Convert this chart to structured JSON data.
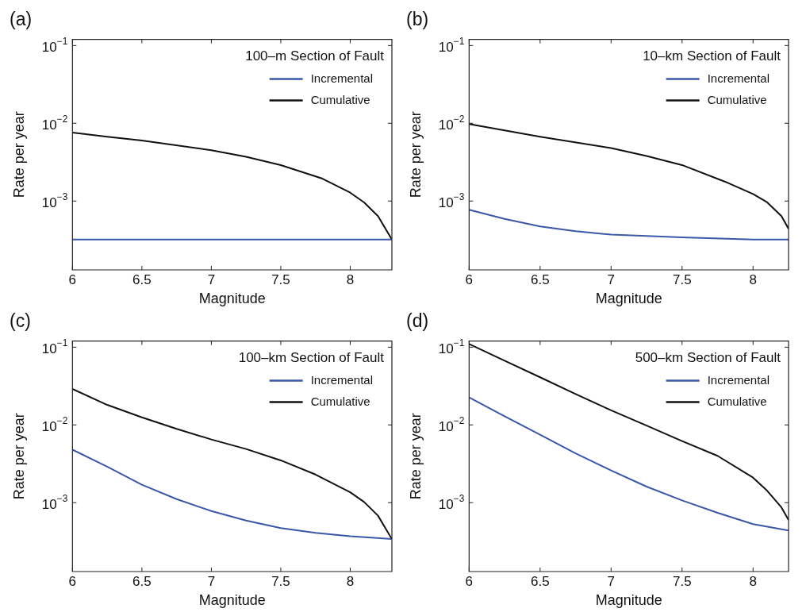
{
  "chart_data": [
    {
      "type": "line",
      "title": "(a)",
      "legend_title": "100–m Section of Fault",
      "xlabel": "Magnitude",
      "ylabel": "Rate per year",
      "log": "y",
      "legend": "top right",
      "marker": "none",
      "xlim": [
        6,
        8.3
      ],
      "xticks": [
        6,
        6.5,
        7,
        7.5,
        8
      ],
      "ylim": [
        0.00013,
        0.12
      ],
      "yticks": [
        {
          "value": 0.001,
          "label": "10$^{−3}$"
        },
        {
          "value": 0.01,
          "label": "10$^{−2}$"
        },
        {
          "value": 0.1,
          "label": "10$^{−1}$"
        }
      ],
      "series": [
        {
          "name": "Incremental",
          "color": "#3a57a8",
          "x": [
            6,
            7,
            8,
            8.3
          ],
          "values": [
            0.00032,
            0.00032,
            0.00032,
            0.00032
          ]
        },
        {
          "name": "Cumulative",
          "color": "#111111",
          "x": [
            6,
            6.25,
            6.5,
            7,
            7.25,
            7.5,
            7.8,
            8,
            8.1,
            8.2,
            8.3
          ],
          "values": [
            0.0076,
            0.0067,
            0.006,
            0.0045,
            0.0037,
            0.0029,
            0.00194,
            0.00128,
            0.00096,
            0.00064,
            0.00032
          ]
        }
      ]
    },
    {
      "type": "line",
      "title": "(b)",
      "legend_title": "10–km Section of Fault",
      "xlabel": "Magnitude",
      "ylabel": "Rate per year",
      "log": "y",
      "legend": "top right",
      "marker": "none",
      "xlim": [
        6,
        8.25
      ],
      "xticks": [
        6,
        6.5,
        7,
        7.5,
        8
      ],
      "ylim": [
        0.00013,
        0.12
      ],
      "yticks": [
        {
          "value": 0.001,
          "label": "10$^{−3}$"
        },
        {
          "value": 0.01,
          "label": "10$^{−2}$"
        },
        {
          "value": 0.1,
          "label": "10$^{−1}$"
        }
      ],
      "series": [
        {
          "name": "Incremental",
          "color": "#3a57a8",
          "x": [
            6,
            6.25,
            6.5,
            6.75,
            7,
            7.5,
            8,
            8.25
          ],
          "values": [
            0.00077,
            0.00059,
            0.00047,
            0.00041,
            0.00037,
            0.00034,
            0.00032,
            0.00032
          ]
        },
        {
          "name": "Cumulative",
          "color": "#111111",
          "x": [
            6,
            6.25,
            6.5,
            7,
            7.25,
            7.5,
            7.8,
            8,
            8.1,
            8.2,
            8.25
          ],
          "values": [
            0.0098,
            0.0081,
            0.0067,
            0.0048,
            0.0038,
            0.0029,
            0.00178,
            0.00123,
            0.00096,
            0.00064,
            0.00044
          ]
        }
      ]
    },
    {
      "type": "line",
      "title": "(c)",
      "legend_title": "100–km Section of Fault",
      "xlabel": "Magnitude",
      "ylabel": "Rate per year",
      "log": "y",
      "legend": "top right",
      "marker": "none",
      "xlim": [
        6,
        8.3
      ],
      "xticks": [
        6,
        6.5,
        7,
        7.5,
        8
      ],
      "ylim": [
        0.00013,
        0.12
      ],
      "yticks": [
        {
          "value": 0.001,
          "label": "10$^{−3}$"
        },
        {
          "value": 0.01,
          "label": "10$^{−2}$"
        },
        {
          "value": 0.1,
          "label": "10$^{−1}$"
        }
      ],
      "series": [
        {
          "name": "Incremental",
          "color": "#3a57a8",
          "x": [
            6,
            6.25,
            6.5,
            6.75,
            7,
            7.25,
            7.5,
            7.75,
            8,
            8.3
          ],
          "values": [
            0.0048,
            0.0029,
            0.0017,
            0.00111,
            0.00078,
            0.00059,
            0.00047,
            0.00041,
            0.00037,
            0.00034
          ]
        },
        {
          "name": "Cumulative",
          "color": "#111111",
          "x": [
            6,
            6.25,
            6.5,
            6.75,
            7,
            7.25,
            7.5,
            7.75,
            8,
            8.1,
            8.2,
            8.3
          ],
          "values": [
            0.029,
            0.0181,
            0.0125,
            0.0089,
            0.0065,
            0.0049,
            0.0035,
            0.0023,
            0.00136,
            0.00102,
            0.00068,
            0.00034
          ]
        }
      ]
    },
    {
      "type": "line",
      "title": "(d)",
      "legend_title": "500–km Section of Fault",
      "xlabel": "Magnitude",
      "ylabel": "Rate per year",
      "log": "y",
      "legend": "top right",
      "marker": "none",
      "xlim": [
        6,
        8.25
      ],
      "xticks": [
        6,
        6.5,
        7,
        7.5,
        8
      ],
      "ylim": [
        0.00013,
        0.12
      ],
      "yticks": [
        {
          "value": 0.001,
          "label": "10$^{−3}$"
        },
        {
          "value": 0.01,
          "label": "10$^{−2}$"
        },
        {
          "value": 0.1,
          "label": "10$^{−1}$"
        }
      ],
      "series": [
        {
          "name": "Incremental",
          "color": "#3a57a8",
          "x": [
            6,
            6.25,
            6.5,
            6.75,
            7,
            7.25,
            7.5,
            7.75,
            8,
            8.25
          ],
          "values": [
            0.0226,
            0.0129,
            0.0075,
            0.0043,
            0.0026,
            0.00161,
            0.00107,
            0.00074,
            0.00053,
            0.00044
          ]
        },
        {
          "name": "Cumulative",
          "color": "#111111",
          "x": [
            6,
            6.25,
            6.5,
            6.75,
            7,
            7.25,
            7.5,
            7.75,
            8,
            8.1,
            8.2,
            8.25
          ],
          "values": [
            0.11,
            0.067,
            0.041,
            0.025,
            0.0154,
            0.0098,
            0.0062,
            0.004,
            0.0021,
            0.00142,
            0.00087,
            0.0006
          ]
        }
      ]
    }
  ]
}
